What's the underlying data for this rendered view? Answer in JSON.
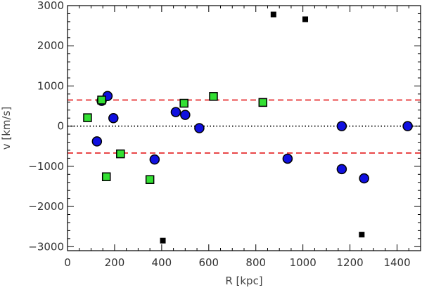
{
  "chart_data": {
    "type": "scatter",
    "title": "",
    "xlabel": "R [kpc]",
    "ylabel": "v [km/s]",
    "xlim": [
      0,
      1500
    ],
    "ylim": [
      -3100,
      3000
    ],
    "xticks": [
      0,
      200,
      400,
      600,
      800,
      1000,
      1200,
      1400
    ],
    "yticks": [
      -3000,
      -2000,
      -1000,
      0,
      1000,
      2000,
      3000
    ],
    "xtick_labels": [
      "0",
      "200",
      "400",
      "600",
      "800",
      "1000",
      "1200",
      "1400"
    ],
    "ytick_labels": [
      "−3000",
      "−2000",
      "−1000",
      "0",
      "1000",
      "2000",
      "3000"
    ],
    "grid": false,
    "legend": "none",
    "reference_lines": [
      {
        "y": 650,
        "style": "dashed",
        "color": "#e41a1c"
      },
      {
        "y": -670,
        "style": "dashed",
        "color": "#e41a1c"
      },
      {
        "y": 0,
        "style": "dotted",
        "color": "#000000"
      }
    ],
    "series": [
      {
        "marker": "circle",
        "color": "#1010e0",
        "points": [
          {
            "x": 125,
            "y": -380
          },
          {
            "x": 145,
            "y": 630
          },
          {
            "x": 170,
            "y": 750
          },
          {
            "x": 195,
            "y": 200
          },
          {
            "x": 370,
            "y": -830
          },
          {
            "x": 460,
            "y": 350
          },
          {
            "x": 500,
            "y": 280
          },
          {
            "x": 560,
            "y": -50
          },
          {
            "x": 935,
            "y": -810
          },
          {
            "x": 1165,
            "y": 0
          },
          {
            "x": 1165,
            "y": -1070
          },
          {
            "x": 1260,
            "y": -1300
          },
          {
            "x": 1445,
            "y": 0
          }
        ]
      },
      {
        "marker": "square",
        "color": "#33e033",
        "points": [
          {
            "x": 85,
            "y": 210
          },
          {
            "x": 145,
            "y": 650
          },
          {
            "x": 165,
            "y": -1260
          },
          {
            "x": 225,
            "y": -690
          },
          {
            "x": 350,
            "y": -1330
          },
          {
            "x": 495,
            "y": 570
          },
          {
            "x": 620,
            "y": 740
          },
          {
            "x": 830,
            "y": 590
          }
        ]
      },
      {
        "marker": "small-square",
        "color": "#000000",
        "points": [
          {
            "x": 405,
            "y": -2850
          },
          {
            "x": 875,
            "y": 2780
          },
          {
            "x": 1010,
            "y": 2660
          },
          {
            "x": 1250,
            "y": -2700
          }
        ]
      }
    ]
  }
}
